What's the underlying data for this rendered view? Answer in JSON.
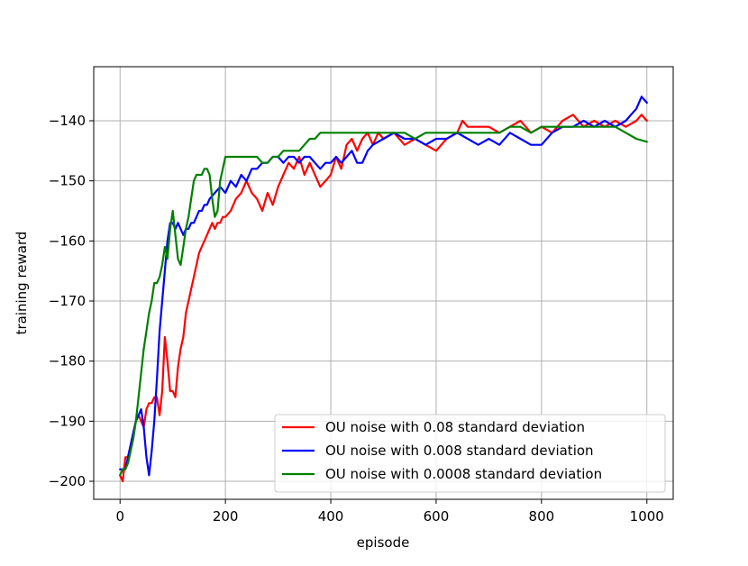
{
  "chart_data": {
    "type": "line",
    "title": "",
    "xlabel": "episode",
    "ylabel": "training reward",
    "xlim": [
      -50,
      1050
    ],
    "ylim": [
      -203,
      -131
    ],
    "xticks": [
      0,
      200,
      400,
      600,
      800,
      1000
    ],
    "xtick_labels": [
      "0",
      "200",
      "400",
      "600",
      "800",
      "1000"
    ],
    "yticks": [
      -200,
      -190,
      -180,
      -170,
      -160,
      -150,
      -140
    ],
    "ytick_labels": [
      "−200",
      "−190",
      "−180",
      "−170",
      "−160",
      "−150",
      "−140"
    ],
    "grid": true,
    "legend_position": "lower-right",
    "series": [
      {
        "name": "OU noise with 0.08 standard deviation",
        "color": "#ff0000",
        "x": [
          0,
          5,
          10,
          15,
          20,
          25,
          30,
          35,
          40,
          45,
          50,
          55,
          60,
          65,
          70,
          75,
          80,
          85,
          90,
          95,
          100,
          105,
          110,
          115,
          120,
          125,
          130,
          135,
          140,
          145,
          150,
          155,
          160,
          165,
          170,
          175,
          180,
          185,
          190,
          195,
          200,
          210,
          220,
          230,
          240,
          250,
          260,
          270,
          280,
          290,
          300,
          310,
          320,
          330,
          340,
          350,
          360,
          370,
          380,
          390,
          400,
          410,
          420,
          430,
          440,
          450,
          460,
          470,
          480,
          490,
          500,
          520,
          540,
          560,
          580,
          600,
          620,
          640,
          650,
          660,
          680,
          700,
          720,
          740,
          760,
          780,
          800,
          820,
          840,
          860,
          880,
          900,
          920,
          940,
          960,
          980,
          990,
          1000
        ],
        "y": [
          -199,
          -200,
          -196,
          -196,
          -194,
          -192,
          -190,
          -189,
          -190,
          -191,
          -188,
          -187,
          -187,
          -186,
          -186,
          -189,
          -185,
          -176,
          -180,
          -185,
          -185,
          -186,
          -181,
          -178,
          -176,
          -172,
          -170,
          -168,
          -166,
          -164,
          -162,
          -161,
          -160,
          -159,
          -158,
          -157,
          -158,
          -157,
          -157,
          -156,
          -156,
          -155,
          -153,
          -152,
          -150,
          -152,
          -153,
          -155,
          -152,
          -154,
          -151,
          -149,
          -147,
          -148,
          -146,
          -149,
          -147,
          -149,
          -151,
          -150,
          -149,
          -146,
          -148,
          -144,
          -143,
          -145,
          -143,
          -142,
          -144,
          -142,
          -143,
          -142,
          -144,
          -143,
          -144,
          -145,
          -143,
          -142,
          -140,
          -141,
          -141,
          -141,
          -142,
          -141,
          -140,
          -142,
          -141,
          -142,
          -140,
          -139,
          -141,
          -140,
          -141,
          -140,
          -141,
          -140,
          -139,
          -140
        ]
      },
      {
        "name": "OU noise with 0.008 standard deviation",
        "color": "#0000ff",
        "x": [
          0,
          5,
          10,
          15,
          20,
          25,
          30,
          35,
          40,
          45,
          50,
          55,
          60,
          65,
          70,
          75,
          80,
          85,
          90,
          95,
          100,
          105,
          110,
          115,
          120,
          125,
          130,
          135,
          140,
          145,
          150,
          155,
          160,
          165,
          170,
          180,
          190,
          200,
          210,
          220,
          230,
          240,
          250,
          260,
          270,
          280,
          290,
          300,
          310,
          320,
          330,
          340,
          350,
          360,
          370,
          380,
          390,
          400,
          410,
          420,
          430,
          440,
          450,
          460,
          470,
          480,
          500,
          520,
          540,
          560,
          580,
          600,
          620,
          640,
          660,
          680,
          700,
          720,
          740,
          760,
          780,
          800,
          820,
          840,
          860,
          880,
          900,
          920,
          940,
          960,
          970,
          980,
          990,
          1000
        ],
        "y": [
          -198,
          -198,
          -198,
          -196,
          -194,
          -192,
          -190,
          -189,
          -188,
          -191,
          -196,
          -199,
          -195,
          -190,
          -183,
          -175,
          -170,
          -165,
          -160,
          -157,
          -157,
          -158,
          -157,
          -158,
          -159,
          -158,
          -158,
          -157,
          -157,
          -156,
          -155,
          -155,
          -154,
          -154,
          -153,
          -152,
          -151,
          -152,
          -150,
          -151,
          -149,
          -150,
          -148,
          -148,
          -147,
          -147,
          -146,
          -146,
          -147,
          -146,
          -146,
          -147,
          -146,
          -146,
          -147,
          -148,
          -147,
          -147,
          -146,
          -147,
          -146,
          -145,
          -147,
          -147,
          -145,
          -144,
          -143,
          -142,
          -143,
          -143,
          -144,
          -143,
          -143,
          -142,
          -143,
          -144,
          -143,
          -144,
          -142,
          -143,
          -144,
          -144,
          -142,
          -141,
          -141,
          -140,
          -141,
          -140,
          -141,
          -140,
          -139,
          -138,
          -136,
          -137
        ]
      },
      {
        "name": "OU noise with 0.0008 standard deviation",
        "color": "#008000",
        "x": [
          0,
          5,
          10,
          15,
          20,
          25,
          30,
          35,
          40,
          45,
          50,
          55,
          60,
          65,
          70,
          75,
          80,
          85,
          90,
          95,
          100,
          105,
          110,
          115,
          120,
          125,
          130,
          135,
          140,
          145,
          150,
          155,
          160,
          165,
          170,
          175,
          180,
          185,
          190,
          195,
          200,
          210,
          220,
          230,
          240,
          250,
          260,
          270,
          280,
          290,
          300,
          310,
          320,
          330,
          340,
          350,
          360,
          370,
          380,
          400,
          420,
          440,
          460,
          480,
          500,
          520,
          540,
          560,
          580,
          600,
          620,
          640,
          660,
          680,
          700,
          720,
          740,
          760,
          780,
          800,
          820,
          840,
          860,
          880,
          900,
          920,
          940,
          960,
          980,
          1000
        ],
        "y": [
          -199,
          -198,
          -198,
          -197,
          -195,
          -193,
          -190,
          -186,
          -182,
          -178,
          -175,
          -172,
          -170,
          -167,
          -167,
          -166,
          -164,
          -161,
          -163,
          -158,
          -155,
          -159,
          -163,
          -164,
          -161,
          -158,
          -156,
          -153,
          -150,
          -149,
          -149,
          -149,
          -148,
          -148,
          -149,
          -153,
          -156,
          -155,
          -150,
          -148,
          -146,
          -146,
          -146,
          -146,
          -146,
          -146,
          -146,
          -147,
          -147,
          -146,
          -146,
          -145,
          -145,
          -145,
          -145,
          -144,
          -143,
          -143,
          -142,
          -142,
          -142,
          -142,
          -142,
          -142,
          -142,
          -142,
          -142,
          -143,
          -142,
          -142,
          -142,
          -142,
          -142,
          -142,
          -142,
          -142,
          -141,
          -141,
          -142,
          -141,
          -141,
          -141,
          -141,
          -141,
          -141,
          -141,
          -141,
          -142,
          -143,
          -143.5
        ]
      }
    ]
  }
}
